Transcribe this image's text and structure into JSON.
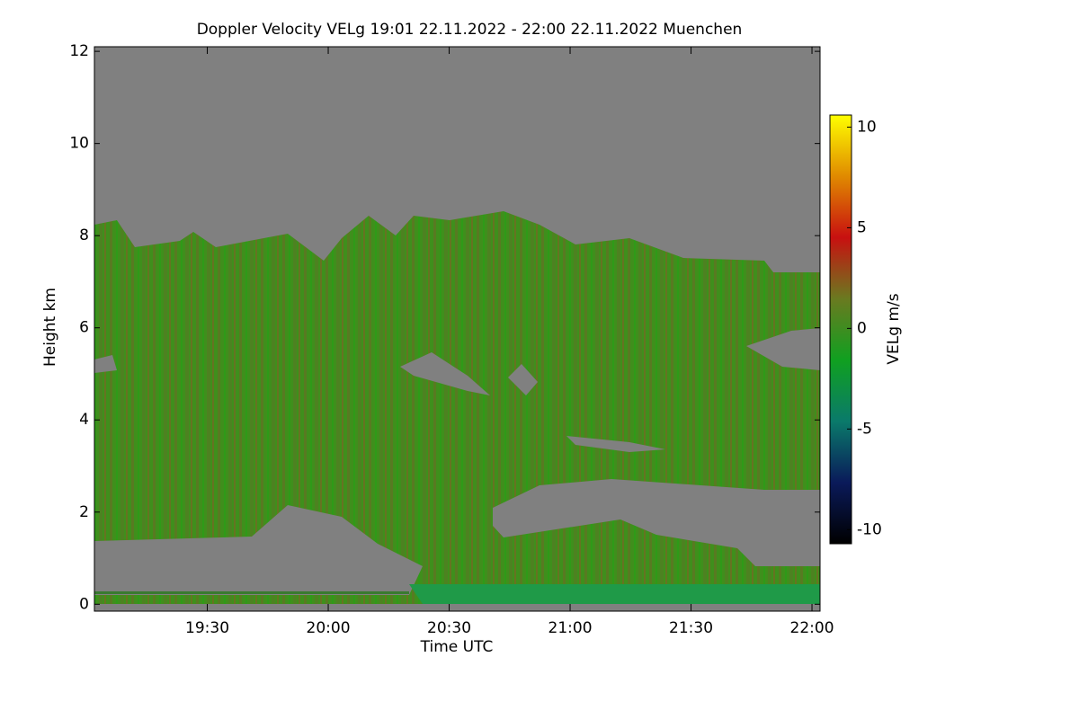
{
  "chart_data": {
    "type": "heatmap",
    "title": "Doppler Velocity VELg   19:01 22.11.2022 - 22:00 22.11.2022 Muenchen",
    "x_label": "Time UTC",
    "y_label": "Height km",
    "colorbar_label": "VELg m/s",
    "xlim": [
      1142,
      1322
    ],
    "xticks": [
      {
        "value": 1170,
        "label": "19:30"
      },
      {
        "value": 1200,
        "label": "20:00"
      },
      {
        "value": 1230,
        "label": "20:30"
      },
      {
        "value": 1260,
        "label": "21:00"
      },
      {
        "value": 1290,
        "label": "21:30"
      },
      {
        "value": 1320,
        "label": "22:00"
      }
    ],
    "ylim": [
      -0.15,
      12.1
    ],
    "yticks": [
      0,
      2,
      4,
      6,
      8,
      10,
      12
    ],
    "clim": [
      -10.7,
      10.6
    ],
    "cticks": [
      -10,
      -5,
      0,
      5,
      10
    ],
    "colormap": [
      "#000000",
      "#0a1a5a",
      "#0a7a6a",
      "#10a020",
      "#6a7a20",
      "#c81010",
      "#e08a00",
      "#ffff00"
    ]
  }
}
